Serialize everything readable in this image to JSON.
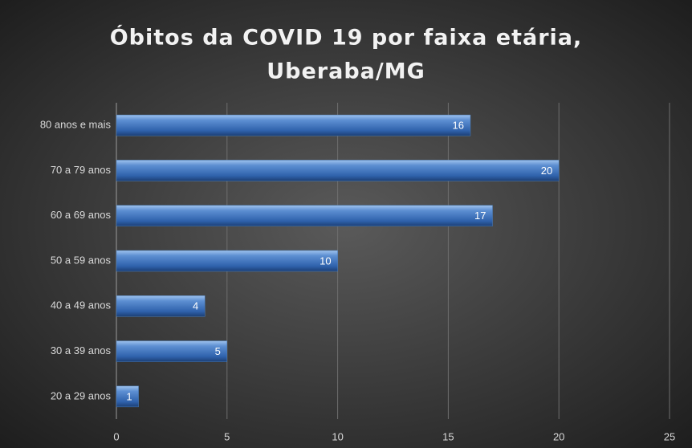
{
  "chart_data": {
    "type": "bar",
    "orientation": "horizontal",
    "title": [
      "Óbitos da COVID 19 por faixa etária,",
      "Uberaba/MG"
    ],
    "categories": [
      "80 anos e mais",
      "70 a 79 anos",
      "60 a 69 anos",
      "50 a 59 anos",
      "40 a 49 anos",
      "30 a 39 anos",
      "20 a 29 anos"
    ],
    "values": [
      16,
      20,
      17,
      10,
      4,
      5,
      1
    ],
    "color": "#4a7ebb",
    "xlim": [
      0,
      25
    ],
    "xticks": [
      0,
      5,
      10,
      15,
      20,
      25
    ],
    "grid": true
  }
}
